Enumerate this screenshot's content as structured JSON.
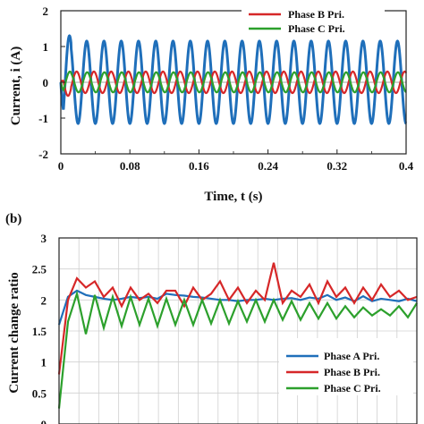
{
  "chart_data": [
    {
      "type": "line",
      "panel_label": "",
      "xlabel": "Time, t (s)",
      "ylabel": "Current, i (A)",
      "xlim": [
        0,
        0.4
      ],
      "ylim": [
        -2,
        2
      ],
      "xticks": [
        "0",
        "0.08",
        "0.16",
        "0.24",
        "0.32",
        "0.4"
      ],
      "yticks": [
        "-2",
        "-1",
        "0",
        "1",
        "2"
      ],
      "grid": false,
      "legend_position": "top-right",
      "signal_frequency_hz": 50,
      "series": [
        {
          "name": "",
          "color": "#1f6fba",
          "amplitude": 1.15,
          "phase_deg": -90,
          "initial_peak": 1.3
        },
        {
          "name": "Phase B Pri.",
          "color": "#d62728",
          "amplitude": 0.3,
          "phase_deg": 120,
          "initial_peak": 0.38
        },
        {
          "name": "Phase C Pri.",
          "color": "#2ca02c",
          "amplitude": 0.28,
          "phase_deg": 260,
          "initial_peak": 0.3
        }
      ]
    },
    {
      "type": "line",
      "panel_label": "(b)",
      "xlabel": "",
      "ylabel": "Current change ratio",
      "ylim": [
        0,
        3
      ],
      "yticks": [
        "0",
        "0.5",
        "1",
        "1.5",
        "2",
        "2.5",
        "3"
      ],
      "grid": true,
      "legend_position": "bottom-right",
      "series": [
        {
          "name": "Phase A Pri.",
          "color": "#1f6fba",
          "values": [
            1.6,
            2.05,
            2.15,
            2.08,
            2.05,
            2.02,
            2.0,
            2.02,
            2.05,
            2.03,
            2.05,
            2.02,
            2.1,
            2.08,
            2.07,
            2.05,
            2.04,
            2.02,
            2.0,
            2.0,
            1.98,
            2.0,
            2.0,
            2.02,
            2.0,
            2.02,
            2.03,
            2.0,
            2.04,
            2.02,
            2.08,
            2.0,
            2.04,
            1.98,
            2.06,
            1.98,
            2.02,
            2.0,
            1.98,
            2.02,
            1.98
          ]
        },
        {
          "name": "Phase B Pri.",
          "color": "#d62728",
          "values": [
            0.8,
            2.0,
            2.35,
            2.2,
            2.3,
            2.05,
            2.2,
            1.9,
            2.2,
            2.0,
            2.1,
            1.95,
            2.15,
            2.15,
            1.9,
            2.2,
            2.0,
            2.1,
            2.3,
            2.0,
            2.2,
            1.95,
            2.15,
            2.0,
            2.6,
            1.95,
            2.15,
            2.05,
            2.25,
            1.95,
            2.3,
            2.05,
            2.2,
            1.95,
            2.2,
            2.0,
            2.25,
            2.05,
            2.15,
            2.0,
            2.05
          ]
        },
        {
          "name": "Phase C Pri.",
          "color": "#2ca02c",
          "values": [
            0.25,
            1.65,
            2.1,
            1.45,
            2.08,
            1.55,
            2.05,
            1.58,
            2.05,
            1.6,
            2.02,
            1.58,
            2.02,
            1.6,
            2.0,
            1.6,
            2.0,
            1.62,
            2.0,
            1.62,
            1.98,
            1.65,
            2.0,
            1.65,
            2.0,
            1.68,
            1.98,
            1.68,
            1.95,
            1.7,
            1.95,
            1.7,
            1.9,
            1.72,
            1.88,
            1.75,
            1.85,
            1.75,
            1.9,
            1.72,
            1.95
          ]
        }
      ]
    }
  ]
}
